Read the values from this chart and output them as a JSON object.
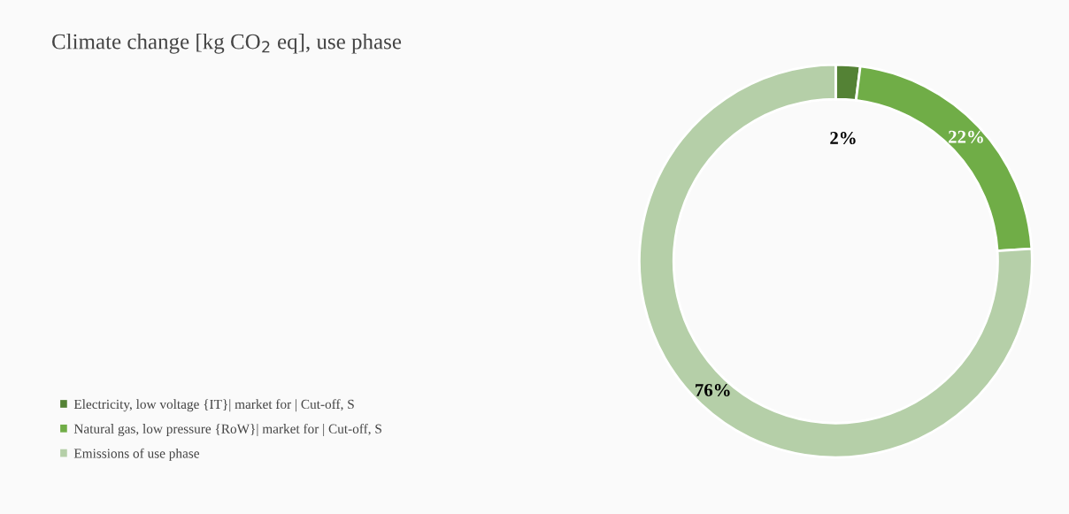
{
  "chart_data": {
    "type": "donut",
    "title": "Climate change [kg CO$_{2}$ eq], use phase",
    "categories": [
      "Electricity, low voltage {IT}| market for | Cut-off, S",
      "Natural gas, low pressure {RoW}| market for | Cut-off, S",
      "Emissions of use phase"
    ],
    "values": [
      2,
      22,
      76
    ],
    "colors": [
      "#548235",
      "#70ad47",
      "#b5cfa8"
    ],
    "value_labels": [
      "2%",
      "22%",
      "76%"
    ],
    "legend": "bottom left"
  }
}
